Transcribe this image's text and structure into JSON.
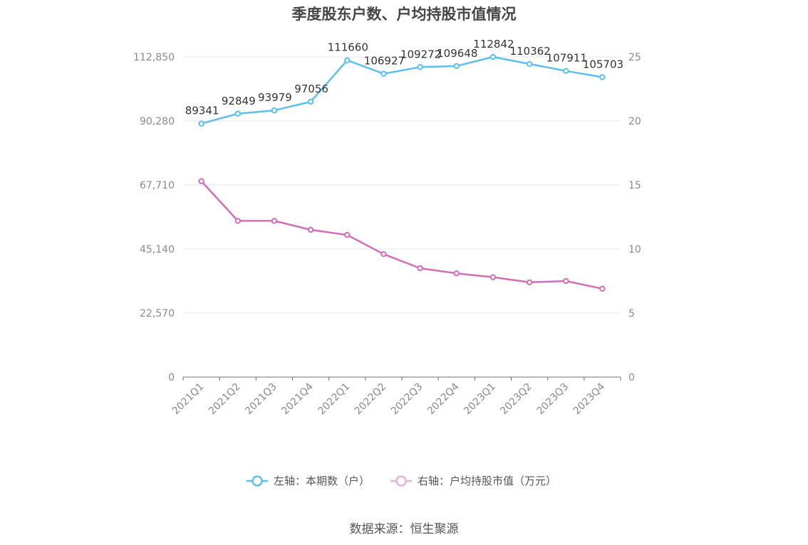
{
  "chart_data": {
    "type": "line",
    "title": "季度股东户数、户均持股市值情况",
    "categories": [
      "2021Q1",
      "2021Q2",
      "2021Q3",
      "2021Q4",
      "2022Q1",
      "2022Q2",
      "2022Q3",
      "2022Q4",
      "2023Q1",
      "2023Q2",
      "2023Q3",
      "2023Q4"
    ],
    "series": [
      {
        "name": "左轴：本期数（户）",
        "axis": "left",
        "color": "#5bbfef",
        "values": [
          89341,
          92849,
          93979,
          97056,
          111660,
          106927,
          109272,
          109648,
          112842,
          110362,
          107911,
          105703
        ],
        "data_labels": [
          "89341",
          "92849",
          "93979",
          "97056",
          "111660",
          "106927",
          "109272",
          "109648",
          "112842",
          "110362",
          "107911",
          "105703"
        ]
      },
      {
        "name": "右轴：户均持股市值（万元）",
        "axis": "right",
        "color": "#d16eb6",
        "values": [
          15.3,
          12.2,
          12.2,
          11.5,
          11.1,
          9.6,
          8.5,
          8.1,
          7.8,
          7.4,
          7.5,
          6.9
        ]
      }
    ],
    "left_axis": {
      "ticks": [
        "0",
        "22,570",
        "45,140",
        "67,710",
        "90,280",
        "112,850"
      ],
      "ylim": [
        0,
        112850
      ]
    },
    "right_axis": {
      "ticks": [
        "0",
        "5",
        "10",
        "15",
        "20",
        "25"
      ],
      "ylim": [
        0,
        25
      ]
    },
    "grid": true,
    "legend_position": "bottom"
  },
  "source": "数据来源：恒生聚源"
}
